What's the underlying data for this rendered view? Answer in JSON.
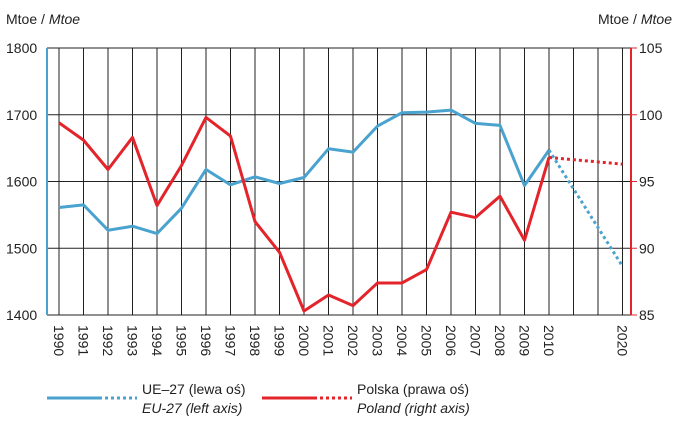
{
  "chart_data": {
    "type": "line",
    "y_label_parts": [
      "Mtoe /",
      "Mtoe"
    ],
    "y2_label_parts": [
      "Mtoe /",
      "Mtoe"
    ],
    "categories": [
      "1990",
      "1991",
      "1992",
      "1993",
      "1994",
      "1995",
      "1996",
      "1997",
      "1998",
      "1999",
      "2000",
      "2001",
      "2002",
      "2003",
      "2004",
      "2005",
      "2006",
      "2007",
      "2008",
      "2009",
      "2010",
      "2020"
    ],
    "projection_start": "2010",
    "series": [
      {
        "name": "UE–27 (lewa oś)",
        "name_en": "EU-27 (left axis)",
        "color": "#4aa3cf",
        "axis": "y",
        "values": [
          1561,
          1565,
          1527,
          1533,
          1522,
          1560,
          1618,
          1595,
          1607,
          1597,
          1606,
          1649,
          1644,
          1683,
          1703,
          1704,
          1707,
          1687,
          1684,
          1594,
          1647,
          1473
        ]
      },
      {
        "name": "Polska (prawa oś)",
        "name_en": "Poland (right axis)",
        "color": "#e3242b",
        "axis": "y2",
        "values": [
          99.4,
          98.1,
          95.9,
          98.3,
          93.2,
          96.2,
          99.8,
          98.4,
          92.0,
          89.7,
          85.3,
          86.5,
          85.7,
          87.4,
          87.4,
          88.4,
          92.7,
          92.3,
          93.9,
          90.6,
          96.8,
          96.3
        ]
      }
    ],
    "ylim": [
      1400,
      1800
    ],
    "yticks": [
      1400,
      1500,
      1600,
      1700,
      1800
    ],
    "y2lim": [
      85,
      105
    ],
    "y2ticks": [
      85,
      90,
      95,
      100,
      105
    ],
    "grid": true
  }
}
